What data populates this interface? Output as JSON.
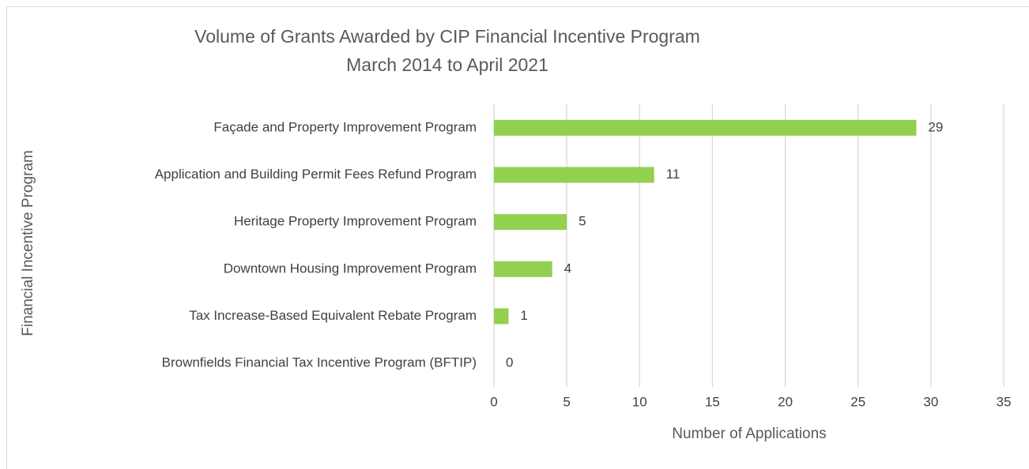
{
  "chart_data": {
    "type": "bar",
    "orientation": "horizontal",
    "title": "Volume of Grants Awarded by CIP Financial Incentive Program",
    "subtitle": "March 2014 to April 2021",
    "x_label": "Number of Applications",
    "y_label": "Financial Incentive Program",
    "categories": [
      "Façade and Property Improvement Program",
      "Application and Building Permit Fees Refund Program",
      "Heritage Property Improvement Program",
      "Downtown Housing Improvement Program",
      "Tax Increase-Based Equivalent Rebate Program",
      "Brownfields Financial Tax Incentive Program (BFTIP)"
    ],
    "values": [
      29,
      11,
      5,
      4,
      1,
      0
    ],
    "color": "#92d050",
    "xlim": [
      0,
      35
    ],
    "xticks": [
      0,
      5,
      10,
      15,
      20,
      25,
      30,
      35
    ],
    "grid": true
  }
}
